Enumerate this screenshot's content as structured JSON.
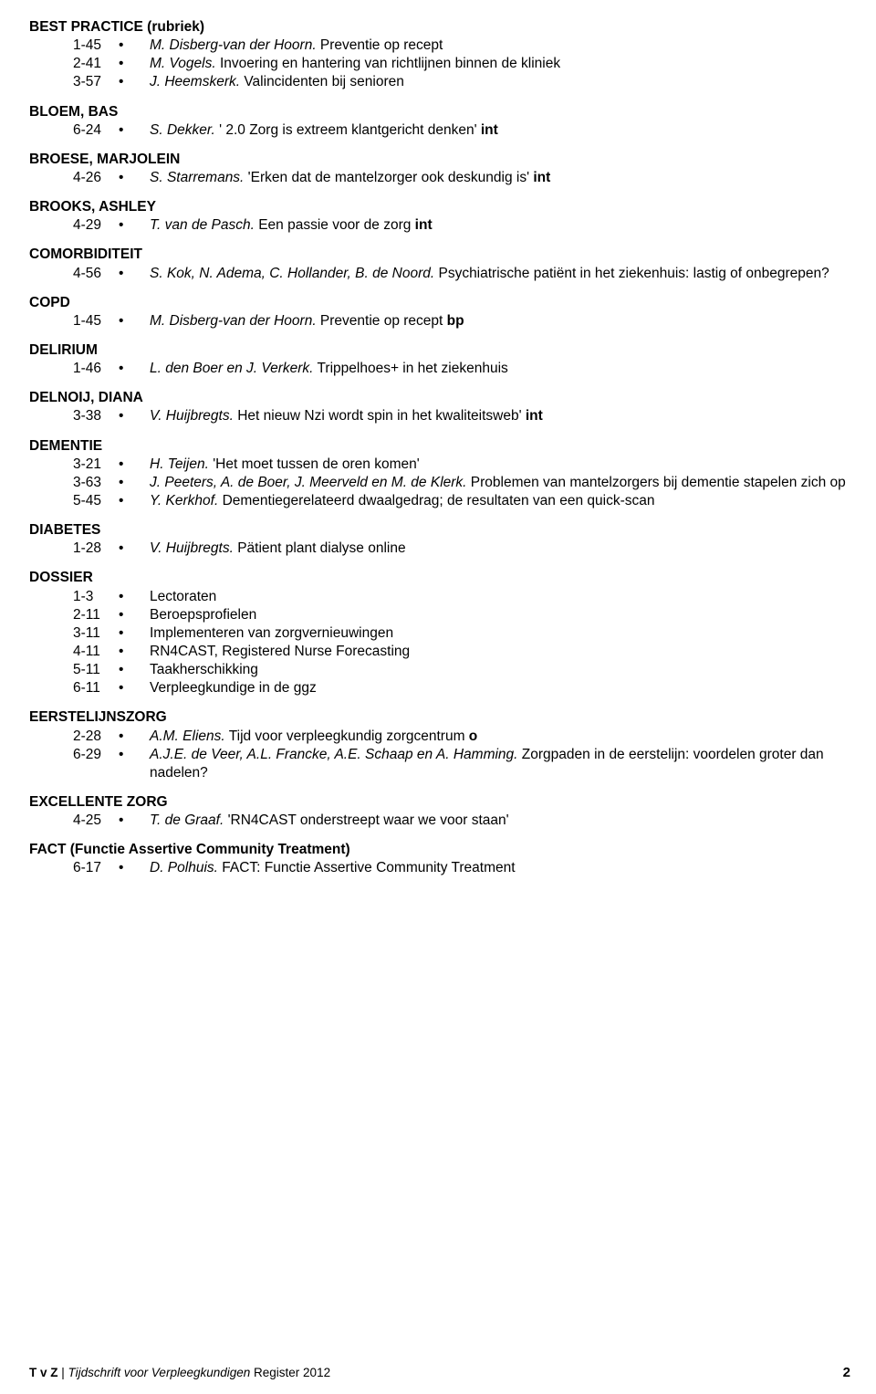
{
  "sections": [
    {
      "heading": "BEST PRACTICE (rubriek)",
      "entries": [
        {
          "ref": "1-45",
          "authors": "M. Disberg-van der Hoorn.",
          "text": " Preventie op  recept"
        },
        {
          "ref": "2-41",
          "authors": "M. Vogels.",
          "text": " Invoering en hantering van richtlijnen binnen de kliniek"
        },
        {
          "ref": "3-57",
          "authors": "J. Heemskerk.",
          "text": " Valincidenten bij senioren"
        }
      ]
    },
    {
      "heading": "BLOEM, BAS",
      "entries": [
        {
          "ref": "6-24",
          "authors": "S. Dekker.",
          "text": " ' 2.0 Zorg is extreem klantgericht denken' ",
          "trailBold": "int"
        }
      ]
    },
    {
      "heading": "BROESE, MARJOLEIN",
      "entries": [
        {
          "ref": "4-26",
          "authors": "S. Starremans.",
          "text": " 'Erken dat de mantelzorger ook deskundig is'  ",
          "trailBold": "int"
        }
      ]
    },
    {
      "heading": "BROOKS, ASHLEY",
      "entries": [
        {
          "ref": "4-29",
          "authors": "T. van de Pasch.",
          "text": " Een passie voor de zorg ",
          "trailBold": "int"
        }
      ]
    },
    {
      "heading": "COMORBIDITEIT",
      "entries": [
        {
          "ref": "4-56",
          "authors": "S. Kok, N. Adema, C. Hollander, B. de Noord.",
          "text": " Psychiatrische patiënt in het ziekenhuis: lastig of onbegrepen?"
        }
      ]
    },
    {
      "heading": "COPD",
      "entries": [
        {
          "ref": "1-45",
          "authors": "M. Disberg-van der Hoorn.",
          "text": " Preventie op  recept ",
          "trailBold": "bp"
        }
      ]
    },
    {
      "heading": "DELIRIUM",
      "entries": [
        {
          "ref": "1-46",
          "authors": "L. den Boer en J. Verkerk.",
          "text": " Trippelhoes+ in het ziekenhuis"
        }
      ]
    },
    {
      "heading": "DELNOIJ, DIANA",
      "entries": [
        {
          "ref": "3-38",
          "authors": "V. Huijbregts.",
          "text": " Het nieuw Nzi wordt spin in het kwaliteitsweb' ",
          "trailBold": "int"
        }
      ]
    },
    {
      "heading": "DEMENTIE",
      "entries": [
        {
          "ref": "3-21",
          "authors": "H. Teijen.",
          "text": " 'Het moet tussen de oren komen'"
        },
        {
          "ref": "3-63",
          "authors": "J. Peeters, A. de Boer, J. Meerveld en M. de Klerk.",
          "text": " Problemen van mantelzorgers bij dementie stapelen zich op"
        },
        {
          "ref": "5-45",
          "authors": "Y. Kerkhof.",
          "text": " Dementiegerelateerd dwaalgedrag; de resultaten van een quick-scan"
        }
      ]
    },
    {
      "heading": "DIABETES",
      "entries": [
        {
          "ref": "1-28",
          "authors": "V. Huijbregts.",
          "text": " Pätient plant dialyse online"
        }
      ]
    },
    {
      "heading": "DOSSIER",
      "entries": [
        {
          "ref": "1-3",
          "text": "Lectoraten"
        },
        {
          "ref": "2-11",
          "text": "Beroepsprofielen"
        },
        {
          "ref": "3-11",
          "text": "Implementeren van zorgvernieuwingen"
        },
        {
          "ref": "4-11",
          "text": "RN4CAST, Registered Nurse Forecasting"
        },
        {
          "ref": "5-11",
          "text": "Taakherschikking"
        },
        {
          "ref": "6-11",
          "text": "Verpleegkundige in de ggz"
        }
      ]
    },
    {
      "heading": "EERSTELIJNSZORG",
      "entries": [
        {
          "ref": "2-28",
          "authors": "A.M. Eliens.",
          "text": " Tijd voor verpleegkundig zorgcentrum ",
          "trailBold": "o"
        },
        {
          "ref": "6-29",
          "authors": "A.J.E. de Veer, A.L. Francke, A.E. Schaap en A. Hamming.",
          "text": " Zorgpaden in de eerstelijn: voordelen groter dan nadelen?"
        }
      ]
    },
    {
      "heading": "EXCELLENTE ZORG",
      "entries": [
        {
          "ref": "4-25",
          "authors": "T. de Graaf.",
          "text": " 'RN4CAST onderstreept waar we voor staan'"
        }
      ]
    },
    {
      "heading": "FACT (Functie Assertive Community Treatment)",
      "entries": [
        {
          "ref": "6-17",
          "authors": "D. Polhuis.",
          "text": " FACT: Functie Assertive Community Treatment"
        }
      ]
    }
  ],
  "footer": {
    "tvz": "T v Z",
    "sep": " | ",
    "title": "Tijdschrift voor Verpleegkundigen",
    "rest": "  Register 2012",
    "page": "2"
  },
  "bullet": "•"
}
